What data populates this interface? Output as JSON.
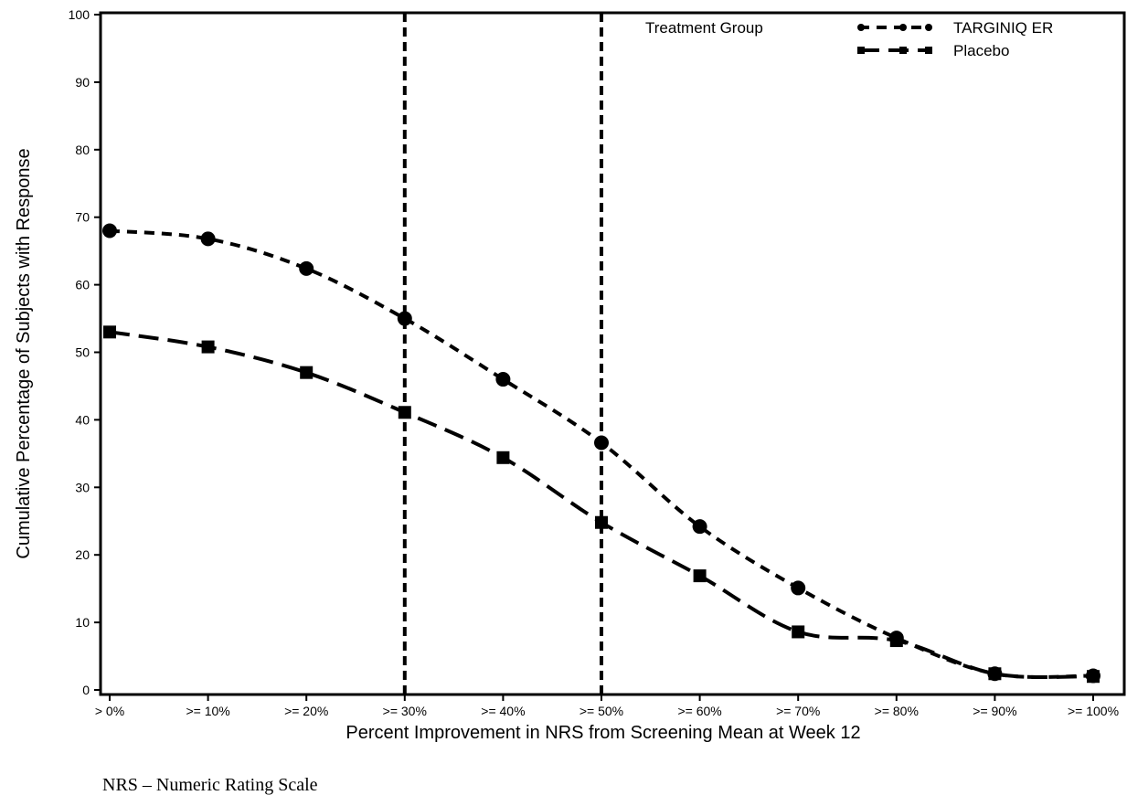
{
  "page": {
    "footnote": "NRS – Numeric Rating Scale"
  },
  "chart_data": {
    "type": "line",
    "title": "",
    "xlabel": "Percent Improvement in NRS from Screening Mean at Week 12",
    "ylabel": "Cumulative Percentage of Subjects with Response",
    "categories": [
      "> 0%",
      ">= 10%",
      ">= 20%",
      ">= 30%",
      ">= 40%",
      ">= 50%",
      ">= 60%",
      ">= 70%",
      ">= 80%",
      ">= 90%",
      ">= 100%"
    ],
    "ylim": [
      0,
      100
    ],
    "yticks": [
      0,
      10,
      20,
      30,
      40,
      50,
      60,
      70,
      80,
      90,
      100
    ],
    "legend": {
      "title": "Treatment Group",
      "placement": "top-right"
    },
    "reference_lines_at": [
      ">= 30%",
      ">= 50%"
    ],
    "series": [
      {
        "name": "TARGINIQ ER",
        "marker": "circle",
        "line_style": "short-dash",
        "values": [
          68.0,
          66.8,
          62.4,
          55.0,
          46.0,
          36.6,
          24.2,
          15.1,
          7.7,
          2.4,
          2.1
        ]
      },
      {
        "name": "Placebo",
        "marker": "square",
        "line_style": "long-dash",
        "values": [
          53.0,
          50.8,
          47.0,
          41.1,
          34.4,
          24.8,
          16.9,
          8.6,
          7.3,
          2.4,
          2.0
        ]
      }
    ],
    "colors": {
      "line": "#000000",
      "background": "#ffffff"
    }
  }
}
